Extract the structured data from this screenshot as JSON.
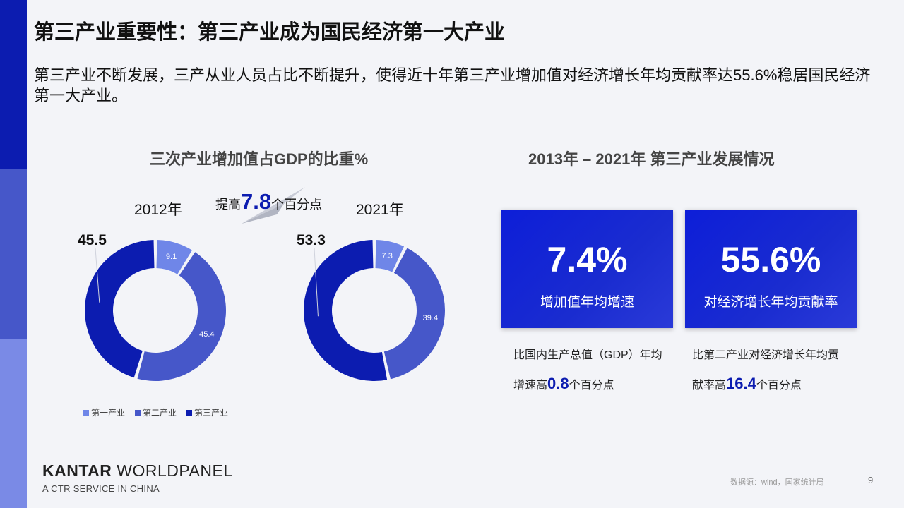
{
  "slide": {
    "title": "第三产业重要性：第三产业成为国民经济第一大产业",
    "subtitle": "第三产业不断发展，三产从业人员占比不断提升，使得近十年第三产业增加值对经济增长年均贡献率达55.6%稳居国民经济第一大产业。"
  },
  "left_section": {
    "heading": "三次产业增加值占GDP的比重%",
    "year_2012": "2012年",
    "year_2021": "2021年",
    "increase_prefix": "提高",
    "increase_value": "7.8",
    "increase_suffix": "个百分点"
  },
  "colors": {
    "primary": "#6f86e8",
    "secondary": "#4657c9",
    "tertiary": "#0c1cb0"
  },
  "chart_data": [
    {
      "type": "pie",
      "title": "2012年",
      "categories": [
        "第一产业",
        "第二产业",
        "第三产业"
      ],
      "values": [
        9.1,
        45.4,
        45.5
      ],
      "labels": [
        "9.1",
        "45.4",
        "45.5"
      ]
    },
    {
      "type": "pie",
      "title": "2021年",
      "categories": [
        "第一产业",
        "第二产业",
        "第三产业"
      ],
      "values": [
        7.3,
        39.4,
        53.3
      ],
      "labels": [
        "7.3",
        "39.4",
        "53.3"
      ]
    }
  ],
  "legend": [
    "第一产业",
    "第二产业",
    "第三产业"
  ],
  "right_section": {
    "heading": "2013年 – 2021年 第三产业发展情况",
    "box1": {
      "value": "7.4%",
      "label": "增加值年均增速",
      "note_line1": "比国内生产总值（GDP）年均",
      "note_prefix": "增速高",
      "note_value": "0.8",
      "note_suffix": "个百分点"
    },
    "box2": {
      "value": "55.6%",
      "label": "对经济增长年均贡献率",
      "note_line1": "比第二产业对经济增长年均贡",
      "note_prefix": "献率高",
      "note_value": "16.4",
      "note_suffix": "个百分点"
    }
  },
  "footer": {
    "logo_bold": "KANTAR",
    "logo_rest": " WORLDPANEL",
    "logo_sub": "A CTR SERVICE IN CHINA",
    "source": "数据源：wind，国家统计局",
    "page": "9"
  }
}
